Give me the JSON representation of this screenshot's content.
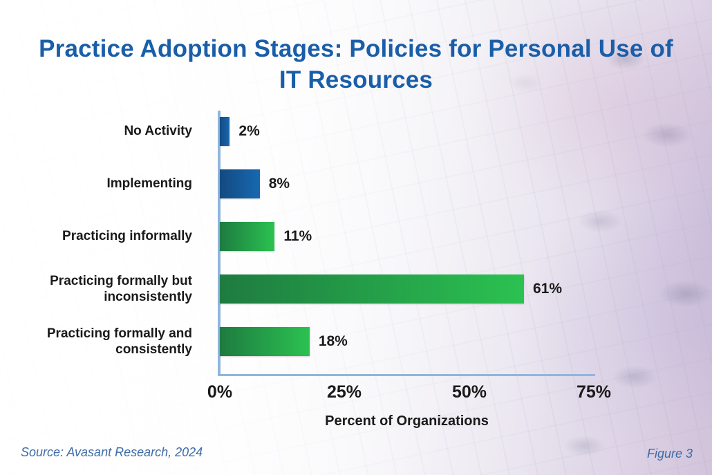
{
  "title": "Practice Adoption Stages: Policies for Personal Use of IT Resources",
  "chart_data": {
    "type": "bar",
    "orientation": "horizontal",
    "title": "Practice Adoption Stages: Policies for Personal Use of IT Resources",
    "categories": [
      "No Activity",
      "Implementing",
      "Practicing informally",
      "Practicing formally but inconsistently",
      "Practicing formally and consistently"
    ],
    "values": [
      2,
      8,
      11,
      61,
      18
    ],
    "value_labels": [
      "2%",
      "8%",
      "11%",
      "61%",
      "18%"
    ],
    "xlabel": "Percent of Organizations",
    "ylabel": "",
    "x_ticks": [
      "0%",
      "25%",
      "50%",
      "75%"
    ],
    "xlim": [
      0,
      75
    ],
    "grid": false,
    "legend": "none",
    "bar_colors": [
      {
        "from": "#134a82",
        "to": "#1768b0"
      },
      {
        "from": "#134a82",
        "to": "#1768b0"
      },
      {
        "from": "#1e7b40",
        "to": "#2bc251"
      },
      {
        "from": "#1e7b40",
        "to": "#2bc251"
      },
      {
        "from": "#1e7b40",
        "to": "#2bc251"
      }
    ]
  },
  "footer": {
    "source": "Source: Avasant Research, 2024",
    "figure": "Figure 3"
  },
  "colors": {
    "title_blue": "#1a5ea8",
    "footer_blue": "#3c6ba8",
    "axis_blue": "#8fb6dd",
    "label_black": "#1a1a1a"
  }
}
